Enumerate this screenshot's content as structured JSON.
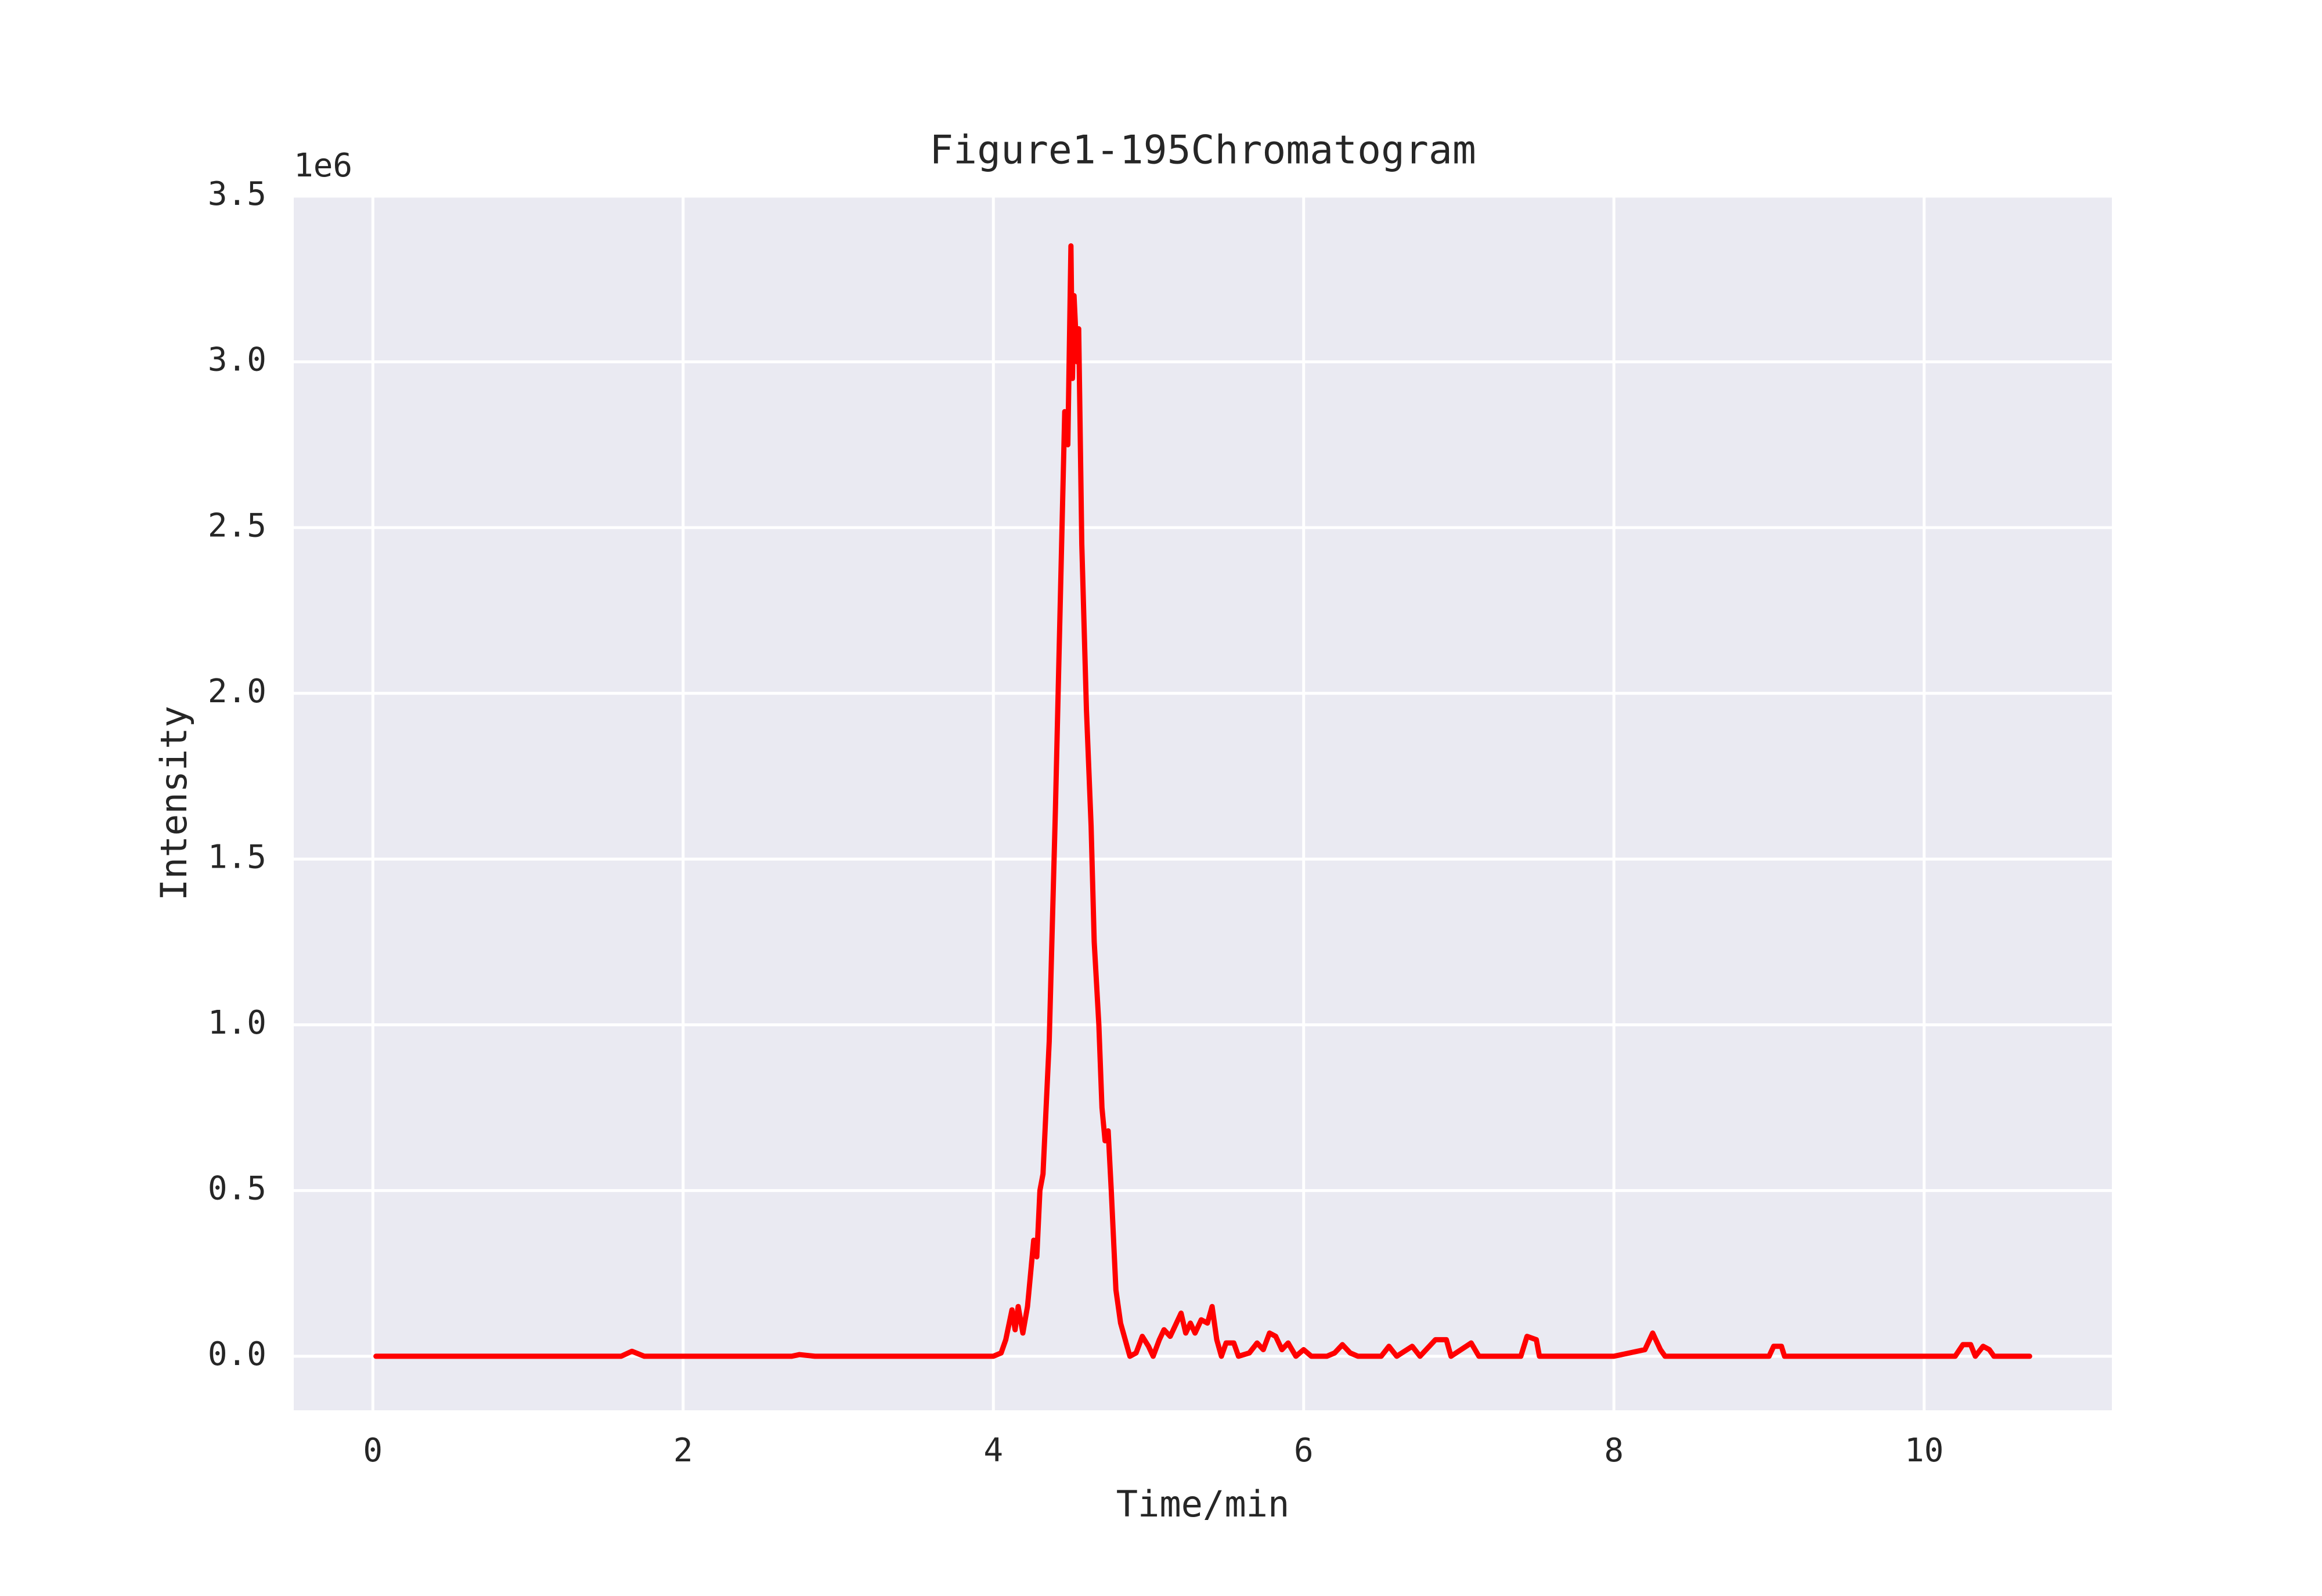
{
  "chart_data": {
    "type": "line",
    "title": "Figure1-195Chromatogram",
    "xlabel": "Time/min",
    "ylabel": "Intensity",
    "y_offset_label": "1e6",
    "x": [
      0.02,
      0.5,
      1.0,
      1.6,
      1.67,
      1.75,
      2.0,
      2.7,
      2.75,
      2.85,
      3.5,
      4.0,
      4.05,
      4.08,
      4.12,
      4.14,
      4.16,
      4.19,
      4.22,
      4.24,
      4.26,
      4.28,
      4.3,
      4.32,
      4.34,
      4.36,
      4.38,
      4.4,
      4.42,
      4.44,
      4.46,
      4.48,
      4.5,
      4.51,
      4.52,
      4.54,
      4.55,
      4.57,
      4.6,
      4.63,
      4.65,
      4.68,
      4.7,
      4.72,
      4.74,
      4.76,
      4.79,
      4.82,
      4.85,
      4.88,
      4.92,
      4.96,
      5.0,
      5.03,
      5.07,
      5.1,
      5.14,
      5.18,
      5.21,
      5.24,
      5.27,
      5.3,
      5.34,
      5.38,
      5.41,
      5.44,
      5.47,
      5.5,
      5.55,
      5.58,
      5.65,
      5.7,
      5.74,
      5.78,
      5.82,
      5.86,
      5.9,
      5.95,
      6.0,
      6.05,
      6.15,
      6.2,
      6.25,
      6.3,
      6.35,
      6.5,
      6.55,
      6.6,
      6.7,
      6.75,
      6.85,
      6.92,
      6.95,
      7.08,
      7.13,
      7.4,
      7.44,
      7.5,
      7.52,
      8.0,
      8.2,
      8.25,
      8.3,
      8.33,
      9.0,
      9.03,
      9.08,
      9.1,
      10.2,
      10.25,
      10.3,
      10.33,
      10.38,
      10.42,
      10.45,
      10.68
    ],
    "values": [
      0,
      0,
      0,
      0,
      0.015,
      0,
      0,
      0,
      0.005,
      0,
      0,
      0,
      0.01,
      0.05,
      0.14,
      0.08,
      0.15,
      0.07,
      0.15,
      0.25,
      0.35,
      0.3,
      0.5,
      0.55,
      0.75,
      0.95,
      1.3,
      1.65,
      2.05,
      2.45,
      2.85,
      2.75,
      3.35,
      2.95,
      3.2,
      3.0,
      3.1,
      2.45,
      1.95,
      1.6,
      1.25,
      1.0,
      0.75,
      0.65,
      0.68,
      0.5,
      0.2,
      0.1,
      0.05,
      0.0,
      0.01,
      0.06,
      0.03,
      0.0,
      0.05,
      0.08,
      0.06,
      0.1,
      0.13,
      0.07,
      0.1,
      0.07,
      0.11,
      0.1,
      0.15,
      0.05,
      0.0,
      0.04,
      0.04,
      0.0,
      0.01,
      0.04,
      0.02,
      0.07,
      0.06,
      0.02,
      0.04,
      0.0,
      0.02,
      0.0,
      0.0,
      0.01,
      0.035,
      0.01,
      0.0,
      0.0,
      0.03,
      0.0,
      0.03,
      0.0,
      0.05,
      0.05,
      0.0,
      0.04,
      0.0,
      0.0,
      0.06,
      0.05,
      0.0,
      0.0,
      0.02,
      0.07,
      0.02,
      0.0,
      0.0,
      0.03,
      0.03,
      0.0,
      0.0,
      0.035,
      0.035,
      0.0,
      0.03,
      0.02,
      0.0,
      0.0
    ],
    "color": "#ff0000",
    "xlim": [
      -0.51,
      11.21
    ],
    "ylim": [
      -0.163,
      3.5
    ],
    "xticks": [
      0,
      2,
      4,
      6,
      8,
      10
    ],
    "yticks": [
      {
        "value": 0,
        "label": "0.0"
      },
      0.5,
      {
        "value": 1,
        "label": "1.0"
      },
      1.5,
      {
        "value": 2,
        "label": "2.0"
      },
      2.5,
      {
        "value": 3,
        "label": "3.0"
      },
      3.5
    ],
    "grid": true,
    "background": "#eaeaf2"
  }
}
